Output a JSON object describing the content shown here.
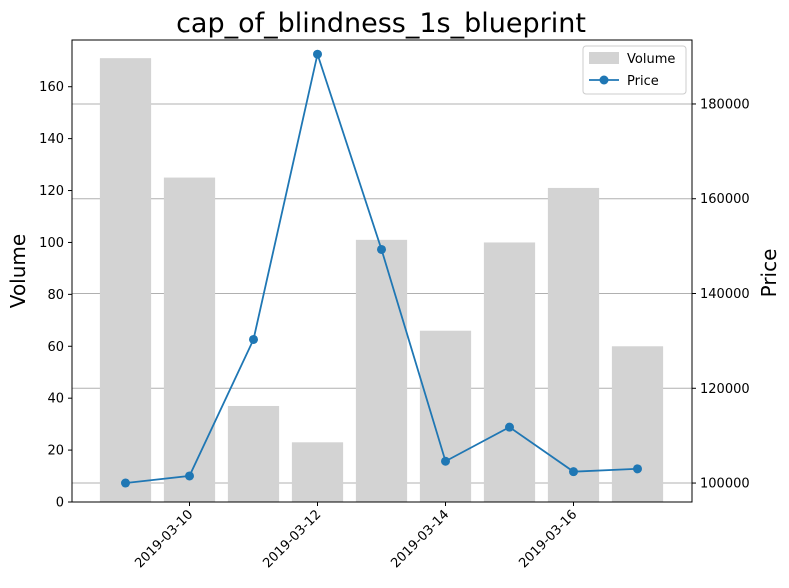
{
  "chart_data": {
    "type": "bar",
    "title": "cap_of_blindness_1s_blueprint",
    "xlabel": "",
    "ylabel": "Volume",
    "y2label": "Price",
    "dates": [
      "2019-03-09",
      "2019-03-10",
      "2019-03-11",
      "2019-03-12",
      "2019-03-13",
      "2019-03-14",
      "2019-03-15",
      "2019-03-16",
      "2019-03-17"
    ],
    "x_tick_labels": [
      "2019-03-10",
      "2019-03-12",
      "2019-03-14",
      "2019-03-16"
    ],
    "ylim": [
      0,
      178
    ],
    "y_ticks": [
      0,
      20,
      40,
      60,
      80,
      100,
      120,
      140,
      160
    ],
    "y2lim": [
      96000,
      193500
    ],
    "y2_ticks": [
      100000,
      120000,
      140000,
      160000,
      180000
    ],
    "grid": "horizontal lines at right-axis ticks",
    "legend_position": "top-right",
    "series": [
      {
        "name": "Volume",
        "type": "bar",
        "axis": "left",
        "color": "#d3d3d3",
        "values": [
          171,
          125,
          37,
          23,
          101,
          66,
          100,
          121,
          60
        ]
      },
      {
        "name": "Price",
        "type": "line",
        "axis": "right",
        "color": "#1f77b4",
        "values": [
          100000,
          101500,
          130300,
          190500,
          149300,
          104600,
          111800,
          102400,
          103000
        ]
      }
    ]
  }
}
